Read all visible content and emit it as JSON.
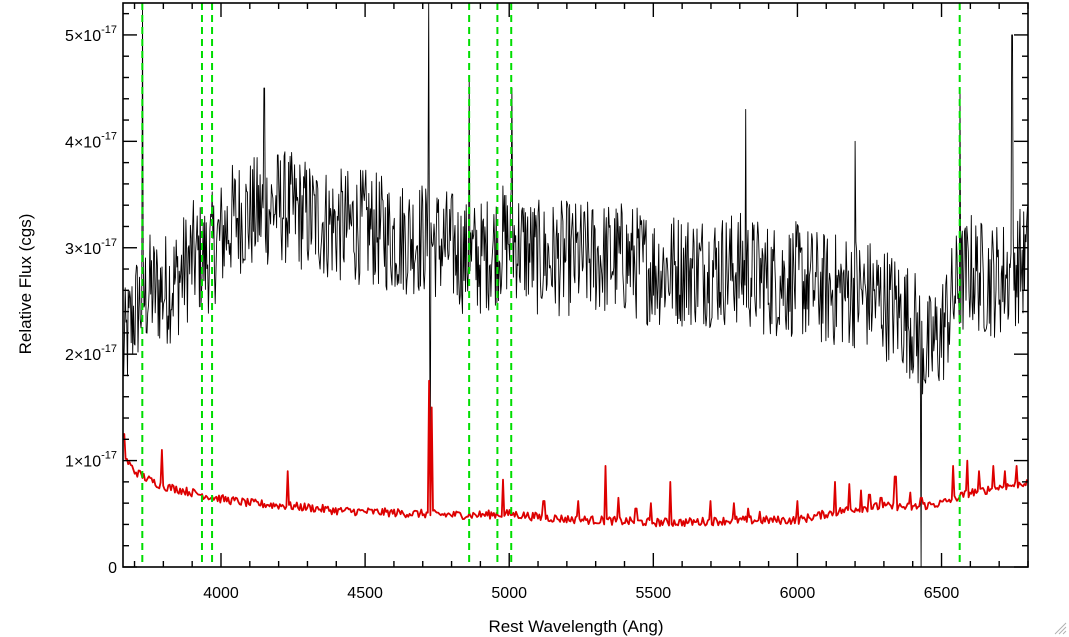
{
  "chart_data": {
    "type": "line",
    "title": "",
    "xlabel": "Rest Wavelength (Ang)",
    "ylabel": "Relative Flux (cgs)",
    "xlim": [
      3660,
      6800
    ],
    "ylim": [
      0,
      5.3e-17
    ],
    "x_ticks": [
      {
        "value": 4000,
        "label": "4000"
      },
      {
        "value": 4500,
        "label": "4500"
      },
      {
        "value": 5000,
        "label": "5000"
      },
      {
        "value": 5500,
        "label": "5500"
      },
      {
        "value": 6000,
        "label": "6000"
      },
      {
        "value": 6500,
        "label": "6500"
      }
    ],
    "y_ticks": [
      {
        "value": 0,
        "mantissa": "0",
        "exponent": ""
      },
      {
        "value": 1e-17,
        "mantissa": "1×10",
        "exponent": "-17"
      },
      {
        "value": 2e-17,
        "mantissa": "2×10",
        "exponent": "-17"
      },
      {
        "value": 3e-17,
        "mantissa": "3×10",
        "exponent": "-17"
      },
      {
        "value": 4e-17,
        "mantissa": "4×10",
        "exponent": "-17"
      },
      {
        "value": 5e-17,
        "mantissa": "5×10",
        "exponent": "-17"
      }
    ],
    "x_minor_step": 100,
    "y_minor_step": 2e-18,
    "grid": false,
    "legend": "none",
    "vertical_lines": [
      3727,
      3934,
      3969,
      4861,
      4959,
      5007,
      6563
    ],
    "series": [
      {
        "color": "#000000",
        "style": "spectrum",
        "noise_amplitude": 0.55,
        "x": [
          3660,
          3700,
          3750,
          3800,
          3850,
          3900,
          3950,
          4000,
          4050,
          4100,
          4200,
          4300,
          4400,
          4500,
          4600,
          4700,
          4800,
          4850,
          4900,
          4950,
          5000,
          5100,
          5200,
          5300,
          5400,
          5500,
          5600,
          5700,
          5800,
          5900,
          6000,
          6100,
          6200,
          6300,
          6400,
          6450,
          6500,
          6550,
          6600,
          6650,
          6700,
          6750,
          6800
        ],
        "y": [
          2.0,
          2.4,
          2.6,
          2.6,
          2.7,
          2.9,
          2.9,
          3.1,
          3.3,
          3.3,
          3.4,
          3.3,
          3.2,
          3.2,
          3.1,
          3.1,
          3.0,
          2.9,
          2.9,
          3.0,
          3.1,
          2.9,
          2.9,
          2.9,
          2.9,
          2.8,
          2.8,
          2.8,
          2.8,
          2.7,
          2.7,
          2.6,
          2.6,
          2.5,
          2.3,
          2.0,
          2.2,
          2.6,
          2.8,
          2.7,
          2.7,
          2.8,
          2.9
        ],
        "spikes": [
          {
            "x": 3728,
            "y": 5.5
          },
          {
            "x": 4720,
            "y": 5.5
          },
          {
            "x": 4726,
            "y": 0.9
          },
          {
            "x": 4862,
            "y": 4.6
          },
          {
            "x": 5010,
            "y": 4.5
          },
          {
            "x": 4150,
            "y": 4.5
          },
          {
            "x": 6565,
            "y": 4.5
          },
          {
            "x": 6745,
            "y": 5.0
          },
          {
            "x": 6430,
            "y": -0.2
          },
          {
            "x": 5820,
            "y": 4.3
          },
          {
            "x": 6200,
            "y": 4.0
          }
        ]
      },
      {
        "color": "#dd0000",
        "style": "spectrum",
        "noise_amplitude": 0.04,
        "x": [
          3660,
          3700,
          3750,
          3800,
          3900,
          4000,
          4100,
          4200,
          4300,
          4400,
          4500,
          4600,
          4700,
          4800,
          4900,
          5000,
          5100,
          5200,
          5300,
          5400,
          5500,
          5600,
          5700,
          5800,
          5900,
          6000,
          6100,
          6200,
          6300,
          6400,
          6500,
          6550,
          6600,
          6650,
          6700,
          6750,
          6800
        ],
        "y": [
          1.05,
          0.9,
          0.82,
          0.76,
          0.7,
          0.64,
          0.6,
          0.58,
          0.56,
          0.53,
          0.52,
          0.51,
          0.5,
          0.49,
          0.49,
          0.5,
          0.47,
          0.45,
          0.44,
          0.43,
          0.42,
          0.42,
          0.43,
          0.44,
          0.44,
          0.44,
          0.5,
          0.55,
          0.57,
          0.56,
          0.6,
          0.65,
          0.7,
          0.72,
          0.75,
          0.77,
          0.8
        ],
        "spikes": [
          {
            "x": 3662,
            "y": 1.25
          },
          {
            "x": 3796,
            "y": 1.1
          },
          {
            "x": 4230,
            "y": 0.9
          },
          {
            "x": 4722,
            "y": 1.75
          },
          {
            "x": 4730,
            "y": 1.5
          },
          {
            "x": 4980,
            "y": 0.82
          },
          {
            "x": 5120,
            "y": 0.62
          },
          {
            "x": 5240,
            "y": 0.62
          },
          {
            "x": 5335,
            "y": 0.95
          },
          {
            "x": 5380,
            "y": 0.65
          },
          {
            "x": 5440,
            "y": 0.55
          },
          {
            "x": 5490,
            "y": 0.6
          },
          {
            "x": 5560,
            "y": 0.8
          },
          {
            "x": 5700,
            "y": 0.62
          },
          {
            "x": 5780,
            "y": 0.6
          },
          {
            "x": 5830,
            "y": 0.55
          },
          {
            "x": 5870,
            "y": 0.52
          },
          {
            "x": 6000,
            "y": 0.62
          },
          {
            "x": 6130,
            "y": 0.8
          },
          {
            "x": 6180,
            "y": 0.78
          },
          {
            "x": 6220,
            "y": 0.72
          },
          {
            "x": 6250,
            "y": 0.68
          },
          {
            "x": 6290,
            "y": 0.65
          },
          {
            "x": 6340,
            "y": 0.85
          },
          {
            "x": 6390,
            "y": 0.7
          },
          {
            "x": 6430,
            "y": 0.65
          },
          {
            "x": 6540,
            "y": 0.95
          },
          {
            "x": 6590,
            "y": 1.0
          },
          {
            "x": 6630,
            "y": 0.9
          },
          {
            "x": 6680,
            "y": 0.95
          },
          {
            "x": 6720,
            "y": 0.9
          },
          {
            "x": 6760,
            "y": 0.95
          }
        ]
      }
    ],
    "vline_color": "#00dd00"
  }
}
